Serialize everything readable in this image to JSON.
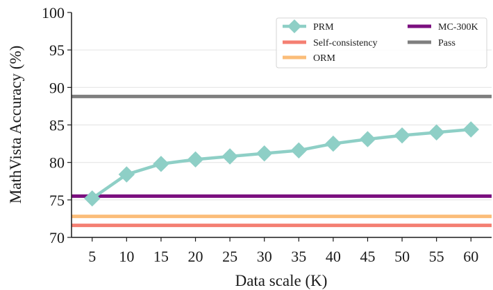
{
  "chart_data": {
    "type": "line",
    "xlabel": "Data scale (K)",
    "ylabel": "MathVista Accuracy (%)",
    "categories": [
      "5",
      "10",
      "15",
      "20",
      "25",
      "30",
      "35",
      "40",
      "45",
      "50",
      "55",
      "60"
    ],
    "x": [
      5,
      10,
      15,
      20,
      25,
      30,
      35,
      40,
      45,
      50,
      55,
      60
    ],
    "ylim": [
      70,
      100
    ],
    "yticks": [
      "70",
      "75",
      "80",
      "85",
      "90",
      "95",
      "100"
    ],
    "grid": "horizontal",
    "legend_position": "top-right",
    "series": [
      {
        "name": "PRM",
        "kind": "line-marker",
        "marker": "diamond",
        "color": "#8ecfc6",
        "values": [
          75.2,
          78.4,
          79.8,
          80.4,
          80.8,
          81.2,
          81.6,
          82.5,
          83.1,
          83.6,
          84.0,
          84.4
        ]
      },
      {
        "name": "Self-consistency",
        "kind": "hline",
        "color": "#f47f72",
        "value": 71.6
      },
      {
        "name": "ORM",
        "kind": "hline",
        "color": "#fbbd79",
        "value": 72.8
      },
      {
        "name": "MC-300K",
        "kind": "hline",
        "color": "#7b0f7f",
        "value": 75.5
      },
      {
        "name": "Pass",
        "kind": "hline",
        "color": "#7f7f7f",
        "value": 88.8
      }
    ]
  }
}
